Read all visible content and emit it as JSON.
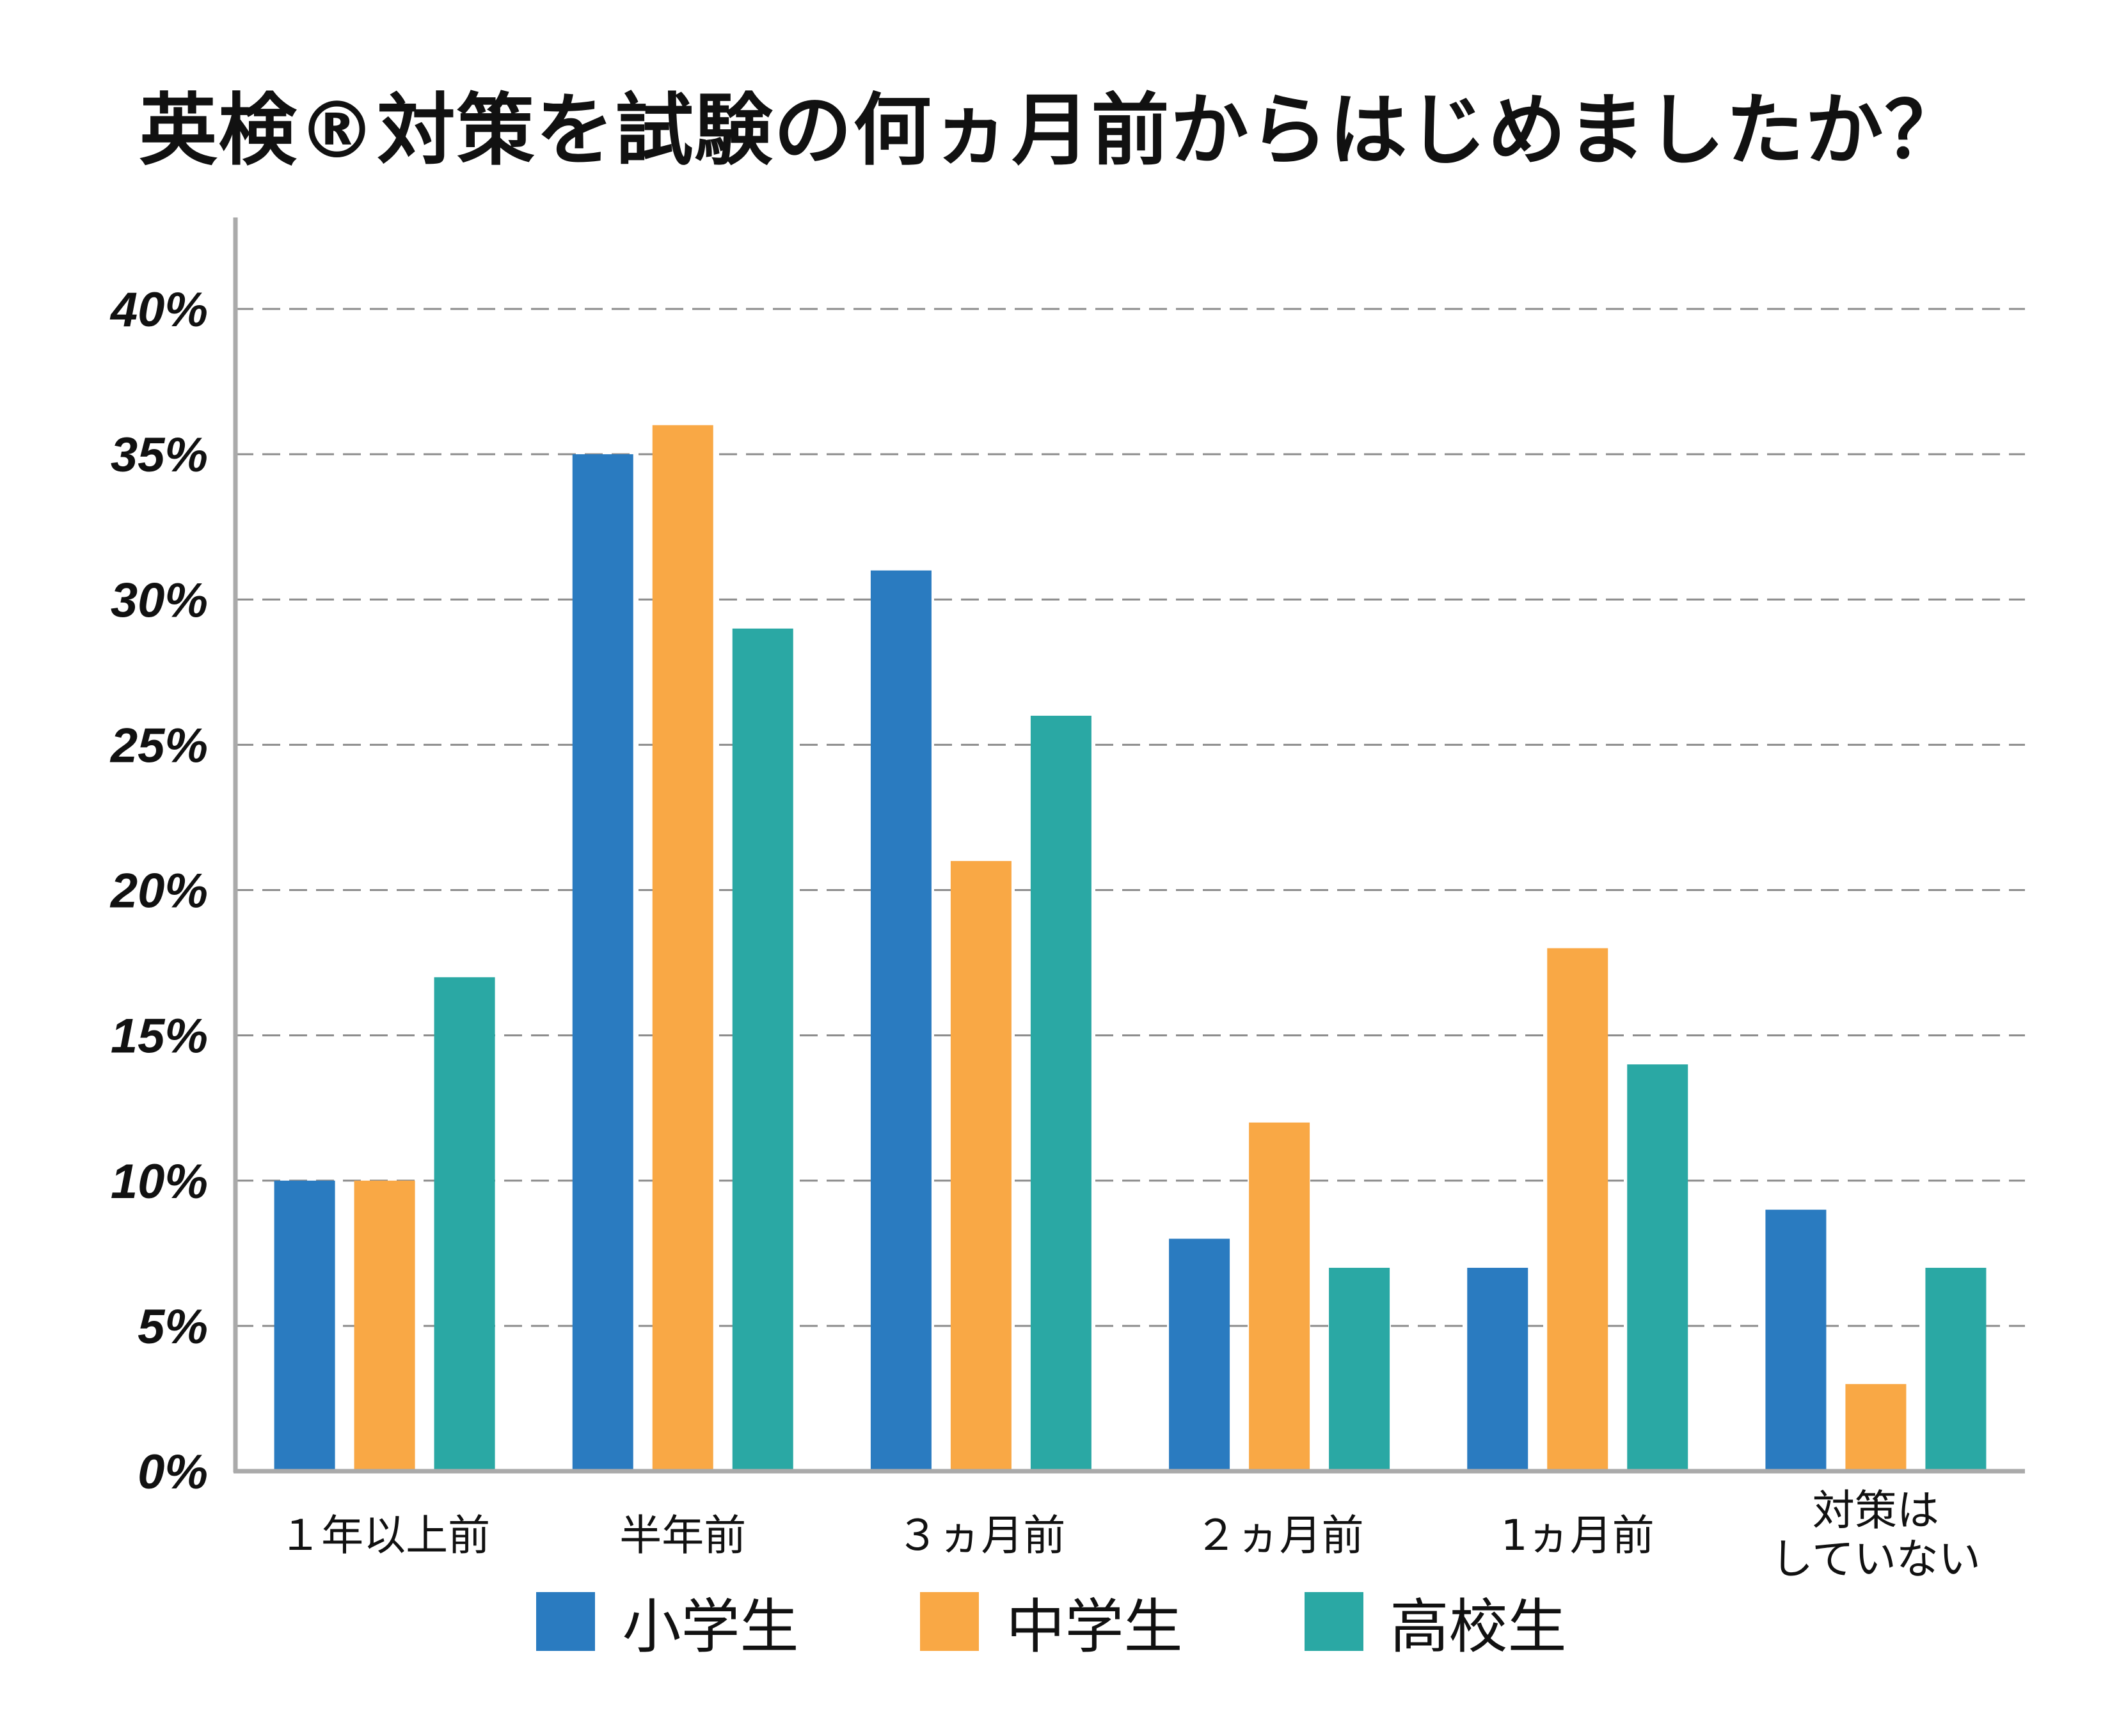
{
  "chart_data": {
    "type": "bar",
    "title": "英検®対策を試験の何ヵ月前からはじめましたか？",
    "categories": [
      "１年以上前",
      "半年前",
      "３ヵ月前",
      "２ヵ月前",
      "1ヵ月前",
      "対策は\nしていない"
    ],
    "series": [
      {
        "name": "小学生",
        "color": "#2A7BC0",
        "values": [
          10,
          35,
          31,
          8,
          7,
          9
        ]
      },
      {
        "name": "中学生",
        "color": "#F9A845",
        "values": [
          10,
          36,
          21,
          12,
          18,
          3
        ]
      },
      {
        "name": "高校生",
        "color": "#2AA8A4",
        "values": [
          17,
          29,
          26,
          7,
          14,
          7
        ]
      }
    ],
    "ylim": [
      0,
      40
    ],
    "yticks": [
      0,
      5,
      10,
      15,
      20,
      25,
      30,
      35,
      40
    ],
    "ytick_labels": [
      "0%",
      "5%",
      "10%",
      "15%",
      "20%",
      "25%",
      "30%",
      "35%",
      "40%"
    ],
    "grid": "dashed horizontal",
    "legend_position": "bottom"
  }
}
